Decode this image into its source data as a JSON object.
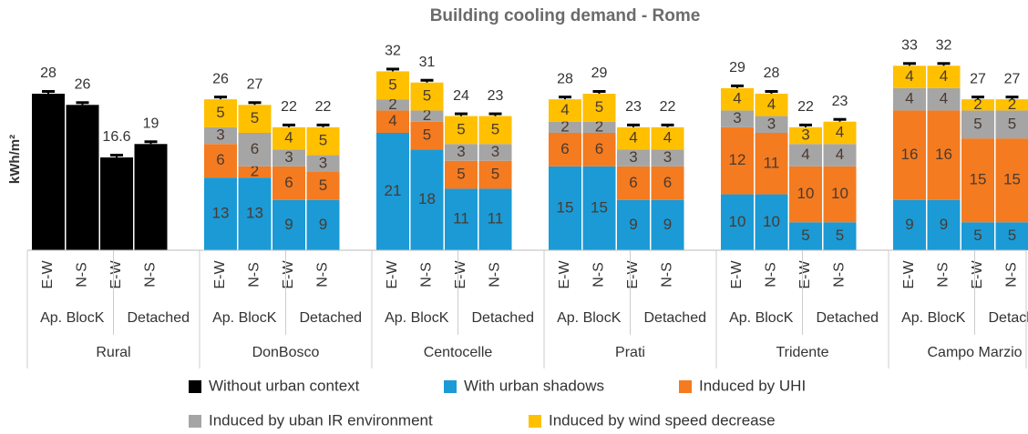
{
  "chart_data": {
    "type": "stacked_bar",
    "title": "Building  cooling demand - Rome",
    "y_label": "kWh/m²",
    "ylim": [
      0,
      35
    ],
    "categories": [
      "E-W",
      "N-S",
      "E-W",
      "N-S",
      "E-W",
      "N-S",
      "E-W",
      "N-S",
      "E-W",
      "N-S",
      "E-W",
      "N-S",
      "E-W",
      "N-S",
      "E-W",
      "N-S",
      "E-W",
      "N-S",
      "E-W",
      "N-S",
      "E-W",
      "N-S",
      "E-W",
      "N-S"
    ],
    "building_types": [
      "Ap. BlocK",
      "Detached",
      "Ap. BlocK",
      "Detached",
      "Ap. BlocK",
      "Detached",
      "Ap. BlocK",
      "Detached",
      "Ap. BlocK",
      "Detached",
      "Ap. BlocK",
      "Detached"
    ],
    "districts": [
      "Rural",
      "DonBosco",
      "Centocelle",
      "Prati",
      "Tridente",
      "Campo Marzio"
    ],
    "totals": [
      28,
      26,
      16.6,
      19,
      26,
      27,
      22,
      22,
      32,
      31,
      24,
      23,
      28,
      29,
      23,
      22,
      29,
      28,
      22,
      23,
      33,
      32,
      27,
      27
    ],
    "series": [
      {
        "name": "Without urban context",
        "color": "#000000",
        "labels": false,
        "values": [
          28,
          26,
          16.6,
          19,
          null,
          null,
          null,
          null,
          null,
          null,
          null,
          null,
          null,
          null,
          null,
          null,
          null,
          null,
          null,
          null,
          null,
          null,
          null,
          null
        ]
      },
      {
        "name": "With urban shadows",
        "color": "#1b9ad6",
        "labels": true,
        "values": [
          null,
          null,
          null,
          null,
          13,
          13,
          9,
          9,
          21,
          18,
          11,
          11,
          15,
          15,
          9,
          9,
          10,
          10,
          5,
          5,
          9,
          9,
          5,
          5
        ]
      },
      {
        "name": "Induced by UHI",
        "color": "#f47b20",
        "labels": true,
        "values": [
          null,
          null,
          null,
          null,
          6,
          2,
          6,
          5,
          4,
          5,
          5,
          5,
          6,
          6,
          6,
          6,
          12,
          11,
          10,
          10,
          16,
          16,
          15,
          15
        ]
      },
      {
        "name": "Induced by uban IR environment",
        "color": "#a5a5a5",
        "labels": true,
        "values": [
          null,
          null,
          null,
          null,
          3,
          6,
          3,
          3,
          2,
          2,
          3,
          3,
          2,
          2,
          3,
          3,
          3,
          3,
          4,
          4,
          4,
          4,
          5,
          5
        ]
      },
      {
        "name": "Induced by wind speed decrease",
        "color": "#ffc000",
        "labels": true,
        "values": [
          null,
          null,
          null,
          null,
          5,
          5,
          4,
          5,
          5,
          5,
          5,
          5,
          4,
          5,
          4,
          4,
          4,
          4,
          3,
          4,
          4,
          4,
          2,
          2
        ]
      }
    ]
  }
}
